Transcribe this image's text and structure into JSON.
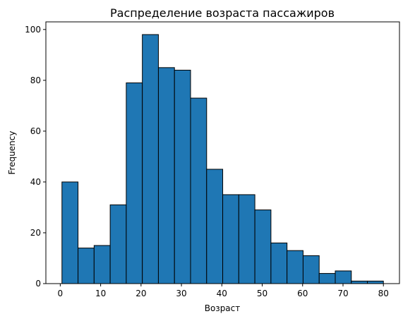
{
  "chart_data": {
    "type": "bar",
    "title": "Распределение возраста пассажиров",
    "xlabel": "Возраст",
    "ylabel": "Frequency",
    "bin_edges": [
      0.42,
      4.4,
      8.38,
      12.36,
      16.34,
      20.32,
      24.3,
      28.28,
      32.26,
      36.24,
      40.22,
      44.2,
      48.18,
      52.16,
      56.14,
      60.12,
      64.1,
      68.08,
      72.06,
      76.04,
      80.0
    ],
    "values": [
      40,
      14,
      15,
      31,
      79,
      98,
      85,
      84,
      73,
      45,
      35,
      35,
      29,
      16,
      13,
      11,
      4,
      5,
      1,
      1
    ],
    "xlim": [
      -3.56,
      83.98
    ],
    "ylim": [
      0,
      103
    ],
    "xticks": [
      0,
      10,
      20,
      30,
      40,
      50,
      60,
      70,
      80
    ],
    "yticks": [
      0,
      20,
      40,
      60,
      80,
      100
    ],
    "bar_color": "#1f77b4",
    "edge_color": "#000000",
    "grid": false,
    "legend": "none"
  }
}
